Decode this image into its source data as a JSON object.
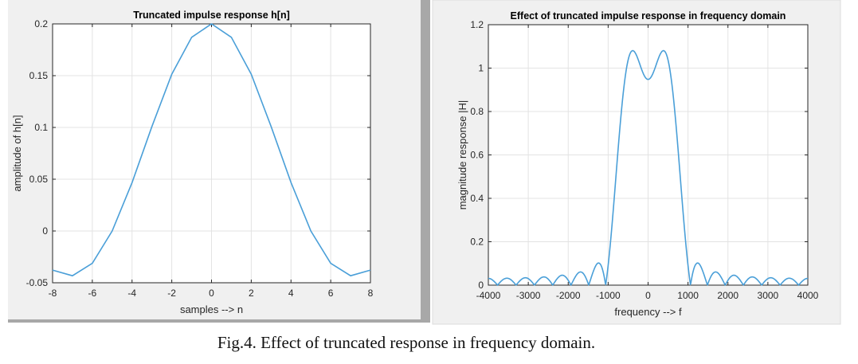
{
  "caption": "Fig.4. Effect of truncated response in frequency domain.",
  "colors": {
    "line": "#4a9fd8",
    "panel_bg": "#f0f0f0",
    "grid": "#e3e3e3",
    "axis": "#262626"
  },
  "chart_data": [
    {
      "type": "line",
      "title": "Truncated impulse response h[n]",
      "xlabel": "samples --> n",
      "ylabel": "amplitude of h[n]",
      "xlim": [
        -8,
        8
      ],
      "ylim": [
        -0.05,
        0.2
      ],
      "xticks": [
        "-8",
        "-6",
        "-4",
        "-2",
        "0",
        "2",
        "4",
        "6",
        "8"
      ],
      "yticks": [
        "-0.05",
        "0",
        "0.05",
        "0.1",
        "0.15",
        "0.2"
      ],
      "grid": true,
      "x": [
        -8,
        -7,
        -6,
        -5,
        -4,
        -3,
        -2,
        -1,
        0,
        1,
        2,
        3,
        4,
        5,
        6,
        7,
        8
      ],
      "values": [
        -0.0378,
        -0.0432,
        -0.0312,
        0,
        0.0468,
        0.1009,
        0.1514,
        0.1871,
        0.2,
        0.1871,
        0.1514,
        0.1009,
        0.0468,
        0,
        -0.0312,
        -0.0432,
        -0.0378
      ]
    },
    {
      "type": "line",
      "title": "Effect of truncated impulse response in frequency domain",
      "xlabel": "frequency --> f",
      "ylabel": "magnitude response |H|",
      "xlim": [
        -4000,
        4000
      ],
      "ylim": [
        0,
        1.2
      ],
      "xticks": [
        "-4000",
        "-3000",
        "-2000",
        "-1000",
        "0",
        "1000",
        "2000",
        "3000",
        "4000"
      ],
      "yticks": [
        "0",
        "0.2",
        "0.4",
        "0.6",
        "0.8",
        "1",
        "1.2"
      ],
      "grid": true,
      "key_points": {
        "center_value": 0.95,
        "passband_peaks": [
          {
            "f": -400,
            "value": 1.08
          },
          {
            "f": 400,
            "value": 1.08
          }
        ],
        "first_zeros": [
          -1050,
          1050
        ],
        "first_sidelobe_peak": 0.1
      }
    }
  ]
}
